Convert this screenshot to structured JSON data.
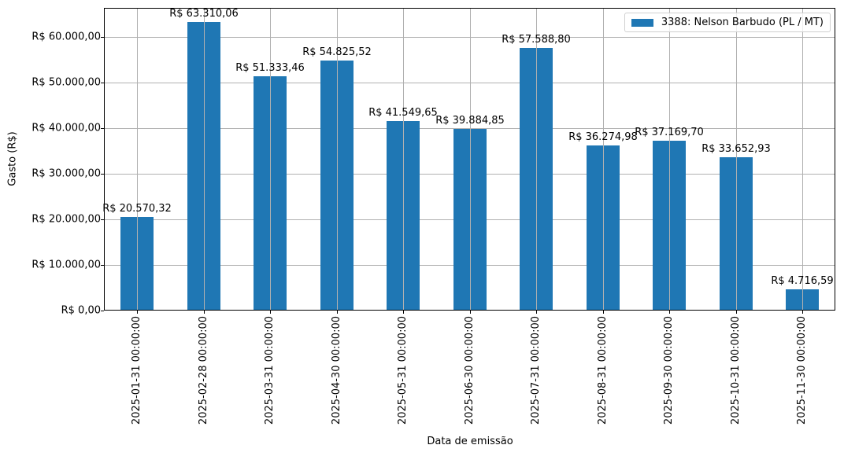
{
  "chart_data": {
    "type": "bar",
    "title": "",
    "xlabel": "Data de emissão",
    "ylabel": "Gasto (R$)",
    "ylim": [
      0,
      66500
    ],
    "grid": true,
    "legend_position": "upper right",
    "categories": [
      "2025-01-31 00:00:00",
      "2025-02-28 00:00:00",
      "2025-03-31 00:00:00",
      "2025-04-30 00:00:00",
      "2025-05-31 00:00:00",
      "2025-06-30 00:00:00",
      "2025-07-31 00:00:00",
      "2025-08-31 00:00:00",
      "2025-09-30 00:00:00",
      "2025-10-31 00:00:00",
      "2025-11-30 00:00:00"
    ],
    "series": [
      {
        "name": "3388: Nelson Barbudo (PL / MT)",
        "color": "#1f77b4",
        "values": [
          20570.32,
          63310.06,
          51333.46,
          54825.52,
          41549.65,
          39884.85,
          57588.8,
          36274.98,
          37169.7,
          33652.93,
          4716.59
        ],
        "labels": [
          "R$ 20.570,32",
          "R$ 63.310,06",
          "R$ 51.333,46",
          "R$ 54.825,52",
          "R$ 41.549,65",
          "R$ 39.884,85",
          "R$ 57.588,80",
          "R$ 36.274,98",
          "R$ 37.169,70",
          "R$ 33.652,93",
          "R$ 4.716,59"
        ]
      }
    ],
    "yticks": [
      0,
      10000,
      20000,
      30000,
      40000,
      50000,
      60000
    ],
    "ytick_labels": [
      "R$ 0,00",
      "R$ 10.000,00",
      "R$ 20.000,00",
      "R$ 30.000,00",
      "R$ 40.000,00",
      "R$ 50.000,00",
      "R$ 60.000,00"
    ]
  },
  "legend": {
    "label": "3388: Nelson Barbudo (PL / MT)"
  },
  "axes": {
    "xlabel": "Data de emissão",
    "ylabel": "Gasto (R$)"
  }
}
